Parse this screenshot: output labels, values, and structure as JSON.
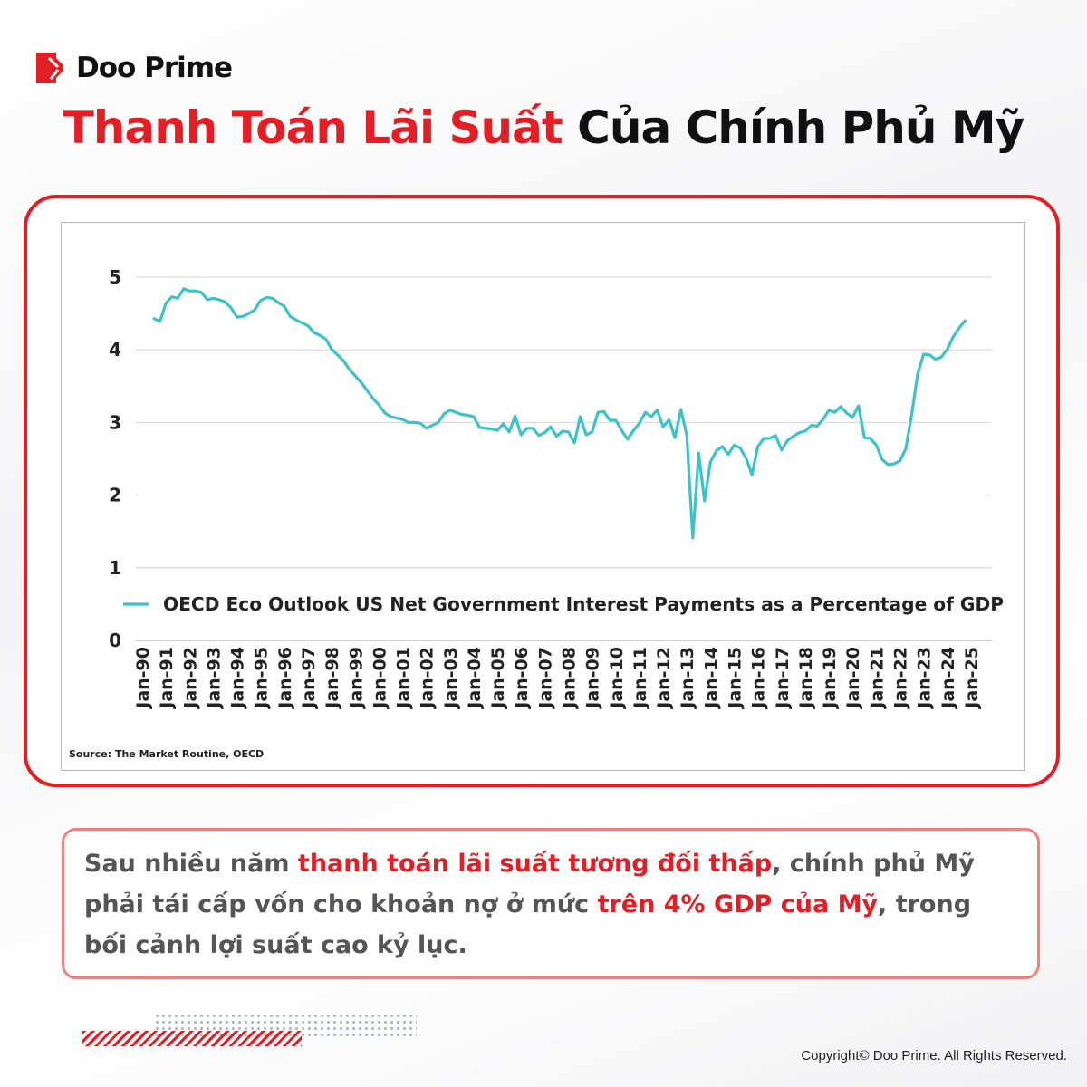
{
  "brand": {
    "name": "Doo Prime",
    "accent_color": "#e31e24"
  },
  "title": {
    "highlight": "Thanh Toán Lãi Suất",
    "rest": "Của Chính Phủ Mỹ"
  },
  "chart_data": {
    "type": "line",
    "title": "",
    "xlabel": "",
    "ylabel": "",
    "ylim": [
      0,
      5
    ],
    "yticks": [
      "0",
      "1",
      "2",
      "3",
      "4",
      "5"
    ],
    "xticks": [
      "Jan-90",
      "Jan-91",
      "Jan-92",
      "Jan-93",
      "Jan-94",
      "Jan-95",
      "Jan-96",
      "Jan-97",
      "Jan-98",
      "Jan-99",
      "Jan-00",
      "Jan-01",
      "Jan-02",
      "Jan-03",
      "Jan-04",
      "Jan-05",
      "Jan-06",
      "Jan-07",
      "Jan-08",
      "Jan-09",
      "Jan-10",
      "Jan-11",
      "Jan-12",
      "Jan-13",
      "Jan-14",
      "Jan-15",
      "Jan-16",
      "Jan-17",
      "Jan-18",
      "Jan-19",
      "Jan-20",
      "Jan-21",
      "Jan-22",
      "Jan-23",
      "Jan-24",
      "Jan-25"
    ],
    "grid": "horizontal",
    "legend_position": "bottom-inside",
    "source": "Source: The Market Routine, OECD",
    "series": [
      {
        "name": "OECD Eco Outlook US Net Government Interest Payments as a Percentage of GDP",
        "color": "#3cc3c8",
        "x": [
          "1990-07",
          "1990-10",
          "1991-01",
          "1991-04",
          "1991-07",
          "1991-10",
          "1992-01",
          "1992-04",
          "1992-07",
          "1992-10",
          "1993-01",
          "1993-04",
          "1993-07",
          "1993-10",
          "1994-01",
          "1994-04",
          "1994-07",
          "1994-10",
          "1995-01",
          "1995-04",
          "1995-07",
          "1995-10",
          "1996-01",
          "1996-04",
          "1996-07",
          "1996-10",
          "1997-01",
          "1997-04",
          "1997-07",
          "1997-10",
          "1998-01",
          "1998-04",
          "1998-07",
          "1998-10",
          "1999-01",
          "1999-04",
          "1999-07",
          "1999-10",
          "2000-01",
          "2000-04",
          "2000-07",
          "2000-10",
          "2001-01",
          "2001-04",
          "2001-07",
          "2001-10",
          "2002-01",
          "2002-04",
          "2002-07",
          "2002-10",
          "2003-01",
          "2003-04",
          "2003-07",
          "2003-10",
          "2004-01",
          "2004-04",
          "2004-07",
          "2004-10",
          "2005-01",
          "2005-04",
          "2005-07",
          "2005-10",
          "2006-01",
          "2006-04",
          "2006-07",
          "2006-10",
          "2007-01",
          "2007-04",
          "2007-07",
          "2007-10",
          "2008-01",
          "2008-04",
          "2008-07",
          "2008-10",
          "2009-01",
          "2009-04",
          "2009-07",
          "2009-10",
          "2010-01",
          "2010-04",
          "2010-07",
          "2010-10",
          "2011-01",
          "2011-04",
          "2011-07",
          "2011-10",
          "2012-01",
          "2012-04",
          "2012-07",
          "2012-10",
          "2013-01",
          "2013-04",
          "2013-07",
          "2013-10",
          "2014-01",
          "2014-04",
          "2014-07",
          "2014-10",
          "2015-01",
          "2015-04",
          "2015-07",
          "2015-10",
          "2016-01",
          "2016-04",
          "2016-07",
          "2016-10",
          "2017-01",
          "2017-04",
          "2017-07",
          "2017-10",
          "2018-01",
          "2018-04",
          "2018-07",
          "2018-10",
          "2019-01",
          "2019-04",
          "2019-07",
          "2019-10",
          "2020-01",
          "2020-04",
          "2020-07",
          "2020-10",
          "2021-01",
          "2021-04",
          "2021-07",
          "2021-10",
          "2022-01",
          "2022-04",
          "2022-07",
          "2022-10",
          "2023-01",
          "2023-04",
          "2023-07",
          "2023-10",
          "2024-01",
          "2024-04",
          "2024-07",
          "2024-10"
        ],
        "values": [
          4.43,
          4.39,
          4.64,
          4.73,
          4.71,
          4.84,
          4.81,
          4.81,
          4.79,
          4.69,
          4.71,
          4.69,
          4.66,
          4.58,
          4.45,
          4.46,
          4.5,
          4.55,
          4.68,
          4.72,
          4.71,
          4.65,
          4.6,
          4.46,
          4.41,
          4.37,
          4.33,
          4.24,
          4.2,
          4.15,
          4.01,
          3.93,
          3.85,
          3.73,
          3.64,
          3.55,
          3.44,
          3.33,
          3.24,
          3.13,
          3.08,
          3.06,
          3.04,
          3.0,
          3.0,
          2.99,
          2.92,
          2.96,
          3.0,
          3.12,
          3.17,
          3.14,
          3.11,
          3.1,
          3.08,
          2.93,
          2.92,
          2.91,
          2.89,
          2.98,
          2.87,
          3.09,
          2.83,
          2.92,
          2.92,
          2.82,
          2.86,
          2.94,
          2.81,
          2.88,
          2.87,
          2.72,
          3.08,
          2.83,
          2.87,
          3.14,
          3.15,
          3.03,
          3.03,
          2.89,
          2.77,
          2.89,
          2.99,
          3.14,
          3.08,
          3.17,
          2.94,
          3.04,
          2.79,
          3.18,
          2.82,
          1.41,
          2.58,
          1.92,
          2.46,
          2.61,
          2.67,
          2.56,
          2.69,
          2.65,
          2.51,
          2.28,
          2.67,
          2.78,
          2.78,
          2.82,
          2.62,
          2.75,
          2.81,
          2.86,
          2.88,
          2.96,
          2.95,
          3.04,
          3.17,
          3.14,
          3.22,
          3.13,
          3.07,
          3.23,
          2.79,
          2.78,
          2.69,
          2.49,
          2.42,
          2.43,
          2.47,
          2.64,
          3.12,
          3.67,
          3.94,
          3.93,
          3.87,
          3.9,
          4.01,
          4.18,
          4.3,
          4.4
        ]
      }
    ]
  },
  "description": {
    "p1": "Sau nhiều năm ",
    "h1": "thanh toán lãi suất tương đối thấp",
    "p2": ", chính phủ Mỹ phải tái cấp vốn cho khoản nợ ở mức ",
    "h2": "trên 4% GDP của Mỹ",
    "p3": ", trong bối cảnh lợi suất cao kỷ lục."
  },
  "footer": {
    "copyright": "Copyright© Doo Prime. All Rights Reserved."
  }
}
